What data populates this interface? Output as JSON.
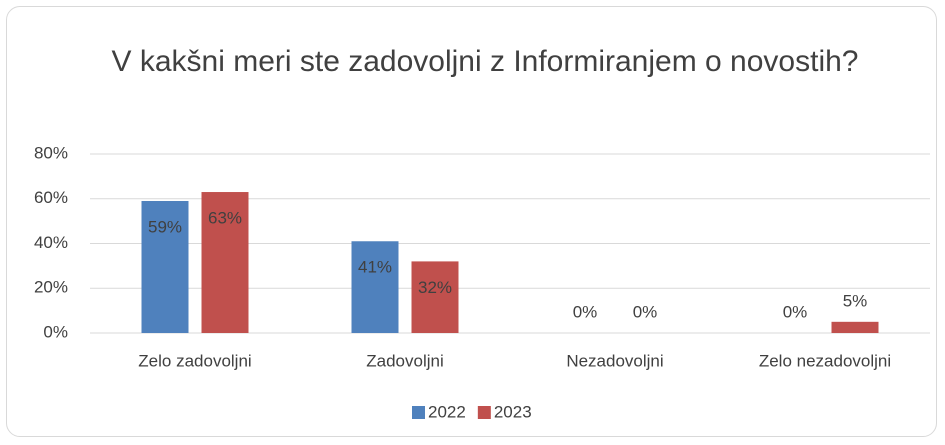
{
  "chart_data": {
    "type": "bar",
    "title": "V kakšni meri ste zadovoljni z Informiranjem o novostih?",
    "categories": [
      "Zelo zadovoljni",
      "Zadovoljni",
      "Nezadovoljni",
      "Zelo nezadovoljni"
    ],
    "series": [
      {
        "name": "2022",
        "color": "#4f81bd",
        "values": [
          59,
          41,
          0,
          0
        ],
        "value_labels": [
          "59%",
          "41%",
          "0%",
          "0%"
        ]
      },
      {
        "name": "2023",
        "color": "#c0504d",
        "values": [
          63,
          32,
          0,
          5
        ],
        "value_labels": [
          "63%",
          "32%",
          "0%",
          "5%"
        ]
      }
    ],
    "ylim": [
      0,
      80
    ],
    "yticks": [
      {
        "value": 0,
        "label": "0%"
      },
      {
        "value": 20,
        "label": "20%"
      },
      {
        "value": 40,
        "label": "40%"
      },
      {
        "value": 60,
        "label": "60%"
      },
      {
        "value": 80,
        "label": "80%"
      }
    ],
    "grid": true,
    "legend": "bottom"
  }
}
